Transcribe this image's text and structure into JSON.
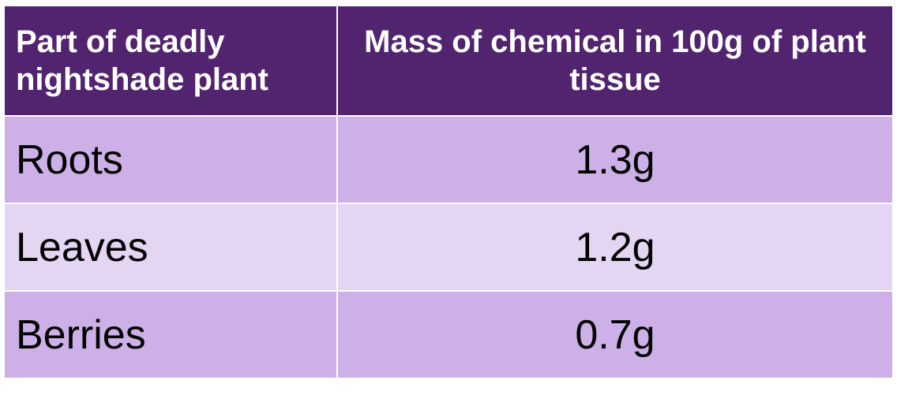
{
  "table": {
    "headers": [
      "Part of deadly nightshade plant",
      "Mass of chemical in 100g of plant tissue"
    ],
    "rows": [
      {
        "part": "Roots",
        "mass": "1.3g"
      },
      {
        "part": "Leaves",
        "mass": "1.2g"
      },
      {
        "part": "Berries",
        "mass": "0.7g"
      }
    ]
  },
  "colors": {
    "header_bg": "#52246f",
    "row_dark": "#cdb0e8",
    "row_light": "#e4d5f3",
    "header_text": "#ffffff"
  }
}
